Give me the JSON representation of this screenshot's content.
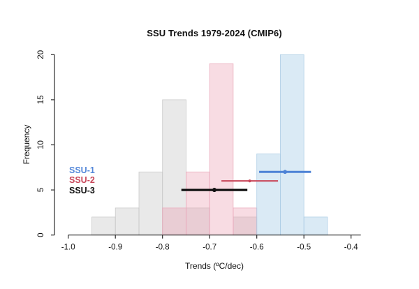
{
  "window": {
    "background": "#ffffff"
  },
  "chart_data": {
    "type": "bar",
    "subtype": "overlaid-histograms",
    "title": "SSU Trends 1979-2024 (CMIP6)",
    "xlabel": "Trends (ºC/dec)",
    "ylabel": "Frequency",
    "xlim": [
      -1.0,
      -0.4
    ],
    "ylim": [
      0,
      20
    ],
    "x_ticks": [
      -1.0,
      -0.9,
      -0.8,
      -0.7,
      -0.6,
      -0.5,
      -0.4
    ],
    "x_tick_labels": [
      "-1.0",
      "-0.9",
      "-0.8",
      "-0.7",
      "-0.6",
      "-0.5",
      "-0.4"
    ],
    "y_ticks": [
      0,
      5,
      10,
      15,
      20
    ],
    "y_tick_labels": [
      "0",
      "5",
      "10",
      "15",
      "20"
    ],
    "grid": "off",
    "bin_width": 0.05,
    "series": [
      {
        "name": "SSU-3",
        "kind": "histogram",
        "fill": "#c0c0c0",
        "fill_opacity": 0.35,
        "stroke": "#c6c6c6",
        "bins": [
          {
            "x0": -0.95,
            "x1": -0.9,
            "count": 2
          },
          {
            "x0": -0.9,
            "x1": -0.85,
            "count": 3
          },
          {
            "x0": -0.85,
            "x1": -0.8,
            "count": 7
          },
          {
            "x0": -0.8,
            "x1": -0.75,
            "count": 15
          },
          {
            "x0": -0.75,
            "x1": -0.7,
            "count": 3
          },
          {
            "x0": -0.7,
            "x1": -0.65,
            "count": 0
          },
          {
            "x0": -0.65,
            "x1": -0.6,
            "count": 2
          }
        ]
      },
      {
        "name": "SSU-2",
        "kind": "histogram",
        "fill": "#eb9baf",
        "fill_opacity": 0.35,
        "stroke": "#eaa9ba",
        "bins": [
          {
            "x0": -0.8,
            "x1": -0.75,
            "count": 3
          },
          {
            "x0": -0.75,
            "x1": -0.7,
            "count": 7
          },
          {
            "x0": -0.7,
            "x1": -0.65,
            "count": 19
          },
          {
            "x0": -0.65,
            "x1": -0.6,
            "count": 3
          }
        ]
      },
      {
        "name": "SSU-1",
        "kind": "histogram",
        "fill": "#96c4e3",
        "fill_opacity": 0.35,
        "stroke": "#aacbe4",
        "bins": [
          {
            "x0": -0.6,
            "x1": -0.55,
            "count": 9
          },
          {
            "x0": -0.55,
            "x1": -0.5,
            "count": 20
          },
          {
            "x0": -0.5,
            "x1": -0.45,
            "count": 2
          }
        ]
      }
    ],
    "error_bars": [
      {
        "name": "SSU-1",
        "y": 7,
        "low": -0.595,
        "center": -0.54,
        "high": -0.485,
        "color": "#4d82d6",
        "width": 3.0
      },
      {
        "name": "SSU-2",
        "y": 6,
        "low": -0.675,
        "center": -0.615,
        "high": -0.555,
        "color": "#c9485b",
        "width": 2.2
      },
      {
        "name": "SSU-3",
        "y": 5,
        "low": -0.76,
        "center": -0.69,
        "high": -0.62,
        "color": "#111111",
        "width": 3.2
      }
    ],
    "legend": {
      "position": "left-middle",
      "entries": [
        {
          "label": "SSU-1",
          "color": "#5588d9"
        },
        {
          "label": "SSU-2",
          "color": "#c9485b"
        },
        {
          "label": "SSU-3",
          "color": "#111111"
        }
      ]
    },
    "axis_color": "#2b2b2b"
  }
}
